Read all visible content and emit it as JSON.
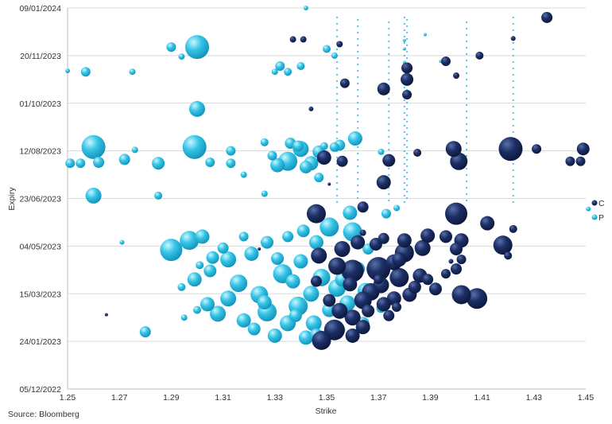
{
  "chart_data": {
    "type": "bubble",
    "xlabel": "Strike",
    "ylabel": "Expiry",
    "xlim": [
      1.25,
      1.45
    ],
    "x_ticks": [
      "1.25",
      "1.27",
      "1.29",
      "1.31",
      "1.33",
      "1.35",
      "1.37",
      "1.39",
      "1.41",
      "1.43",
      "1.45"
    ],
    "y_ticks": [
      "09/01/2024",
      "20/11/2023",
      "01/10/2023",
      "12/08/2023",
      "23/06/2023",
      "04/05/2023",
      "15/03/2023",
      "24/01/2023",
      "05/12/2022"
    ],
    "ylim": [
      "05/12/2022",
      "09/01/2024"
    ],
    "grid": "horizontal",
    "legend_position": "right",
    "series": [
      {
        "name": "C",
        "color": "#14265a",
        "points": [
          [
            1.435,
            "2023-12-30",
            7
          ],
          [
            1.422,
            "2023-12-08",
            3
          ],
          [
            1.409,
            "2023-11-20",
            5
          ],
          [
            1.396,
            "2023-11-14",
            6
          ],
          [
            1.4,
            "2023-10-30",
            4
          ],
          [
            1.381,
            "2023-11-07",
            7
          ],
          [
            1.381,
            "2023-10-26",
            8
          ],
          [
            1.381,
            "2023-10-10",
            6
          ],
          [
            1.372,
            "2023-10-16",
            8
          ],
          [
            1.357,
            "2023-10-22",
            6
          ],
          [
            1.337,
            "2023-12-07",
            4
          ],
          [
            1.341,
            "2023-12-07",
            4
          ],
          [
            1.355,
            "2023-12-02",
            4
          ],
          [
            1.421,
            "2023-08-14",
            15
          ],
          [
            1.431,
            "2023-08-14",
            6
          ],
          [
            1.449,
            "2023-08-14",
            8
          ],
          [
            1.444,
            "2023-08-01",
            6
          ],
          [
            1.448,
            "2023-08-01",
            6
          ],
          [
            1.399,
            "2023-08-14",
            10
          ],
          [
            1.385,
            "2023-08-10",
            5
          ],
          [
            1.374,
            "2023-08-02",
            8
          ],
          [
            1.349,
            "2023-08-05",
            9
          ],
          [
            1.356,
            "2023-08-01",
            7
          ],
          [
            1.401,
            "2023-08-01",
            11
          ],
          [
            1.372,
            "2023-07-10",
            9
          ],
          [
            1.346,
            "2023-06-07",
            12
          ],
          [
            1.364,
            "2023-06-14",
            7
          ],
          [
            1.4,
            "2023-06-07",
            14
          ],
          [
            1.412,
            "2023-05-28",
            9
          ],
          [
            1.422,
            "2023-05-22",
            5
          ],
          [
            1.418,
            "2023-05-05",
            12
          ],
          [
            1.402,
            "2023-05-10",
            9
          ],
          [
            1.396,
            "2023-05-14",
            8
          ],
          [
            1.389,
            "2023-05-15",
            9
          ],
          [
            1.4,
            "2023-05-01",
            8
          ],
          [
            1.402,
            "2023-04-20",
            6
          ],
          [
            1.4,
            "2023-04-10",
            7
          ],
          [
            1.42,
            "2023-04-24",
            5
          ],
          [
            1.387,
            "2023-05-02",
            10
          ],
          [
            1.38,
            "2023-05-10",
            9
          ],
          [
            1.38,
            "2023-04-27",
            12
          ],
          [
            1.376,
            "2023-04-17",
            10
          ],
          [
            1.37,
            "2023-04-10",
            15
          ],
          [
            1.378,
            "2023-04-01",
            12
          ],
          [
            1.386,
            "2023-04-03",
            9
          ],
          [
            1.384,
            "2023-03-22",
            8
          ],
          [
            1.371,
            "2023-03-24",
            10
          ],
          [
            1.392,
            "2023-03-20",
            8
          ],
          [
            1.376,
            "2023-03-10",
            9
          ],
          [
            1.367,
            "2023-03-17",
            11
          ],
          [
            1.36,
            "2023-04-08",
            14
          ],
          [
            1.354,
            "2023-04-13",
            11
          ],
          [
            1.347,
            "2023-04-24",
            10
          ],
          [
            1.356,
            "2023-05-01",
            10
          ],
          [
            1.362,
            "2023-05-08",
            9
          ],
          [
            1.369,
            "2023-05-06",
            8
          ],
          [
            1.359,
            "2023-03-25",
            9
          ],
          [
            1.364,
            "2023-03-08",
            11
          ],
          [
            1.377,
            "2023-03-01",
            6
          ],
          [
            1.402,
            "2023-03-14",
            12
          ],
          [
            1.408,
            "2023-03-10",
            13
          ],
          [
            1.396,
            "2023-04-05",
            6
          ],
          [
            1.36,
            "2023-02-18",
            10
          ],
          [
            1.353,
            "2023-02-05",
            13
          ],
          [
            1.348,
            "2023-01-25",
            12
          ],
          [
            1.364,
            "2023-02-08",
            9
          ],
          [
            1.355,
            "2023-02-25",
            10
          ],
          [
            1.366,
            "2023-02-25",
            8
          ],
          [
            1.372,
            "2023-03-04",
            9
          ],
          [
            1.382,
            "2023-03-14",
            9
          ],
          [
            1.374,
            "2023-02-20",
            7
          ],
          [
            1.36,
            "2023-01-30",
            9
          ],
          [
            1.351,
            "2023-03-08",
            8
          ],
          [
            1.346,
            "2023-03-28",
            7
          ],
          [
            1.372,
            "2023-05-12",
            7
          ],
          [
            1.265,
            "2023-02-21",
            2
          ],
          [
            1.324,
            "2023-05-01",
            2
          ],
          [
            1.344,
            "2023-09-25",
            3
          ],
          [
            1.351,
            "2023-07-08",
            2
          ],
          [
            1.364,
            "2023-05-18",
            4
          ],
          [
            1.37,
            "2023-03-30",
            6
          ],
          [
            1.378,
            "2023-04-20",
            9
          ],
          [
            1.389,
            "2023-03-30",
            7
          ],
          [
            1.398,
            "2023-04-18",
            3
          ]
        ]
      },
      {
        "name": "P",
        "color": "#2fbfe0",
        "points": [
          [
            1.3,
            "2023-11-29",
            15
          ],
          [
            1.29,
            "2023-11-29",
            6
          ],
          [
            1.294,
            "2023-11-19",
            4
          ],
          [
            1.257,
            "2023-11-03",
            6
          ],
          [
            1.275,
            "2023-11-03",
            4
          ],
          [
            1.25,
            "2023-11-04",
            3
          ],
          [
            1.3,
            "2023-09-25",
            10
          ],
          [
            1.26,
            "2023-08-16",
            15
          ],
          [
            1.299,
            "2023-08-16",
            15
          ],
          [
            1.276,
            "2023-08-13",
            4
          ],
          [
            1.272,
            "2023-08-03",
            7
          ],
          [
            1.262,
            "2023-07-31",
            7
          ],
          [
            1.251,
            "2023-07-30",
            6
          ],
          [
            1.255,
            "2023-07-30",
            6
          ],
          [
            1.285,
            "2023-07-30",
            8
          ],
          [
            1.26,
            "2023-06-26",
            10
          ],
          [
            1.285,
            "2023-06-26",
            5
          ],
          [
            1.305,
            "2023-07-31",
            6
          ],
          [
            1.313,
            "2023-07-30",
            6
          ],
          [
            1.332,
            "2023-11-09",
            6
          ],
          [
            1.335,
            "2023-11-03",
            5
          ],
          [
            1.33,
            "2023-11-03",
            4
          ],
          [
            1.34,
            "2023-11-09",
            5
          ],
          [
            1.35,
            "2023-11-27",
            5
          ],
          [
            1.353,
            "2023-11-20",
            4
          ],
          [
            1.361,
            "2023-08-25",
            9
          ],
          [
            1.335,
            "2023-08-01",
            12
          ],
          [
            1.34,
            "2023-08-14",
            10
          ],
          [
            1.347,
            "2023-08-11",
            8
          ],
          [
            1.336,
            "2023-08-20",
            7
          ],
          [
            1.329,
            "2023-08-07",
            6
          ],
          [
            1.342,
            "2023-07-26",
            8
          ],
          [
            1.347,
            "2023-07-15",
            6
          ],
          [
            1.326,
            "2023-06-28",
            4
          ],
          [
            1.318,
            "2023-07-18",
            4
          ],
          [
            1.313,
            "2023-08-12",
            6
          ],
          [
            1.331,
            "2023-07-28",
            9
          ],
          [
            1.344,
            "2023-07-30",
            9
          ],
          [
            1.355,
            "2023-08-18",
            7
          ],
          [
            1.339,
            "2023-08-17",
            7
          ],
          [
            1.353,
            "2023-08-16",
            6
          ],
          [
            1.29,
            "2023-04-30",
            14
          ],
          [
            1.297,
            "2023-05-10",
            12
          ],
          [
            1.302,
            "2023-05-14",
            9
          ],
          [
            1.306,
            "2023-04-22",
            8
          ],
          [
            1.31,
            "2023-05-02",
            7
          ],
          [
            1.312,
            "2023-04-20",
            10
          ],
          [
            1.316,
            "2023-03-26",
            11
          ],
          [
            1.312,
            "2023-03-10",
            10
          ],
          [
            1.299,
            "2023-03-30",
            9
          ],
          [
            1.304,
            "2023-03-04",
            9
          ],
          [
            1.308,
            "2023-02-22",
            10
          ],
          [
            1.321,
            "2023-04-26",
            9
          ],
          [
            1.324,
            "2023-03-14",
            11
          ],
          [
            1.333,
            "2023-04-05",
            12
          ],
          [
            1.327,
            "2023-02-24",
            12
          ],
          [
            1.335,
            "2023-02-12",
            10
          ],
          [
            1.345,
            "2023-02-12",
            10
          ],
          [
            1.339,
            "2023-03-02",
            12
          ],
          [
            1.344,
            "2023-03-15",
            10
          ],
          [
            1.348,
            "2023-04-01",
            11
          ],
          [
            1.354,
            "2023-03-21",
            11
          ],
          [
            1.358,
            "2023-03-05",
            10
          ],
          [
            1.362,
            "2023-04-10",
            9
          ],
          [
            1.36,
            "2023-05-19",
            12
          ],
          [
            1.351,
            "2023-05-24",
            12
          ],
          [
            1.359,
            "2023-06-08",
            9
          ],
          [
            1.373,
            "2023-06-07",
            6
          ],
          [
            1.346,
            "2023-05-08",
            9
          ],
          [
            1.335,
            "2023-05-14",
            7
          ],
          [
            1.327,
            "2023-05-08",
            8
          ],
          [
            1.318,
            "2023-05-14",
            6
          ],
          [
            1.3,
            "2023-02-26",
            5
          ],
          [
            1.295,
            "2023-02-18",
            4
          ],
          [
            1.28,
            "2023-02-03",
            7
          ],
          [
            1.33,
            "2023-01-30",
            9
          ],
          [
            1.342,
            "2023-01-28",
            9
          ],
          [
            1.322,
            "2023-02-06",
            8
          ],
          [
            1.318,
            "2023-02-15",
            9
          ],
          [
            1.351,
            "2023-02-26",
            9
          ],
          [
            1.34,
            "2023-04-18",
            9
          ],
          [
            1.337,
            "2023-03-28",
            9
          ],
          [
            1.356,
            "2023-03-30",
            9
          ],
          [
            1.365,
            "2023-03-18",
            10
          ],
          [
            1.341,
            "2023-05-20",
            8
          ],
          [
            1.331,
            "2023-04-21",
            8
          ],
          [
            1.305,
            "2023-04-08",
            8
          ],
          [
            1.346,
            "2023-01-31",
            8
          ],
          [
            1.326,
            "2023-03-06",
            9
          ],
          [
            1.338,
            "2023-02-20",
            8
          ],
          [
            1.364,
            "2023-02-12",
            8
          ],
          [
            1.371,
            "2023-02-28",
            6
          ],
          [
            1.355,
            "2023-02-05",
            7
          ],
          [
            1.366,
            "2023-05-01",
            7
          ],
          [
            1.377,
            "2023-06-13",
            4
          ],
          [
            1.342,
            "2024-01-09",
            3
          ],
          [
            1.38,
            "2023-12-06",
            2
          ],
          [
            1.38,
            "2023-11-27",
            2
          ],
          [
            1.38,
            "2023-11-13",
            2
          ],
          [
            1.388,
            "2023-12-12",
            2
          ],
          [
            1.394,
            "2023-11-14",
            2
          ],
          [
            1.349,
            "2023-08-17",
            5
          ],
          [
            1.371,
            "2023-08-11",
            4
          ],
          [
            1.326,
            "2023-08-21",
            5
          ],
          [
            1.301,
            "2023-04-14",
            5
          ],
          [
            1.294,
            "2023-03-22",
            5
          ],
          [
            1.271,
            "2023-05-08",
            3
          ],
          [
            1.451,
            "2023-06-12",
            3
          ]
        ]
      }
    ],
    "x_dot_columns": [
      1.354,
      1.362,
      1.374,
      1.38,
      1.381,
      1.404,
      1.422
    ],
    "legend": [
      "C",
      "P"
    ]
  },
  "source": "Source: Bloomberg"
}
